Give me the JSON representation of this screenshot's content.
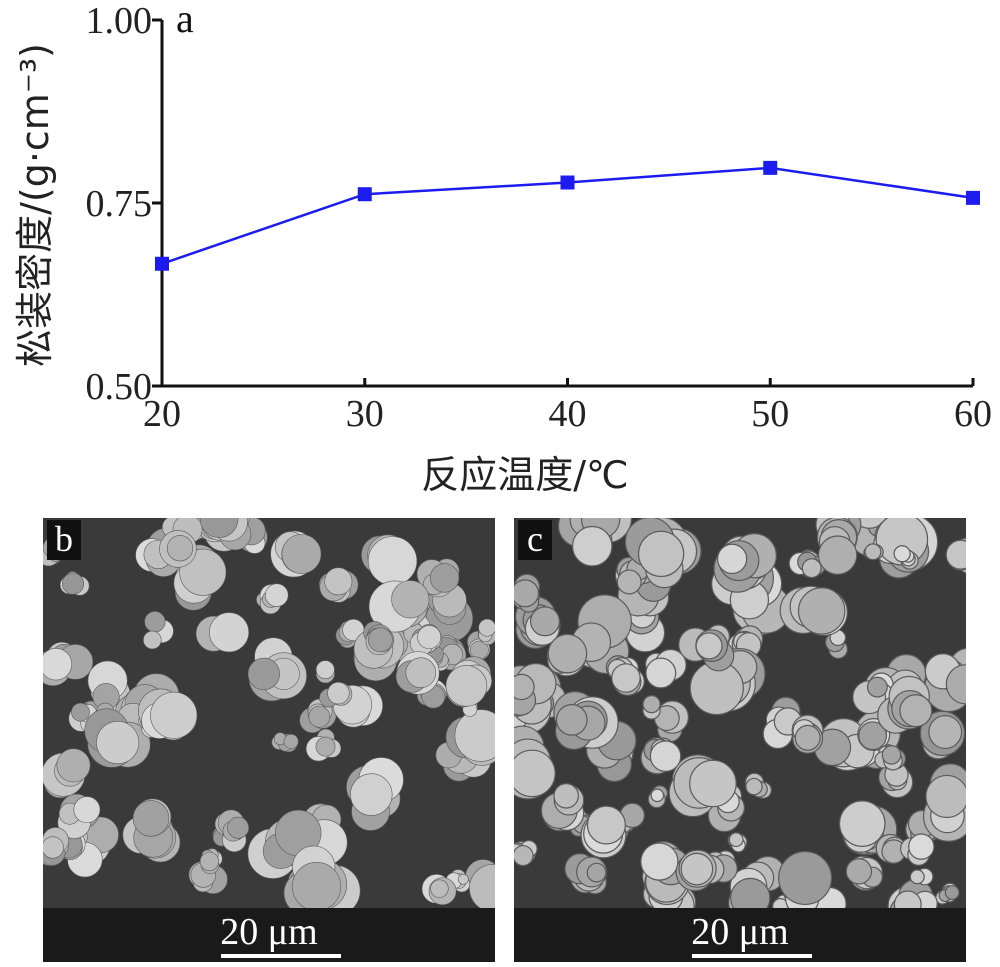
{
  "panel_labels": {
    "a": "a",
    "b": "b",
    "c": "c"
  },
  "chart_data": {
    "type": "line",
    "title": "",
    "xlabel": "反应温度/℃",
    "ylabel": "松装密度/(g·cm⁻³)",
    "x": [
      20,
      30,
      40,
      50,
      60
    ],
    "series": [
      {
        "values": [
          0.667,
          0.762,
          0.778,
          0.798,
          0.757
        ]
      }
    ],
    "xlim": [
      20,
      60
    ],
    "ylim": [
      0.5,
      1.0
    ],
    "xticks": [
      "20",
      "30",
      "40",
      "50",
      "60"
    ],
    "yticks": [
      "0.50",
      "0.75",
      "1.00"
    ],
    "grid": false,
    "line_color": "#1c1cf0",
    "marker": "square"
  },
  "sem_b": {
    "scale_label": "20 μm"
  },
  "sem_c": {
    "scale_label": "20 μm"
  }
}
